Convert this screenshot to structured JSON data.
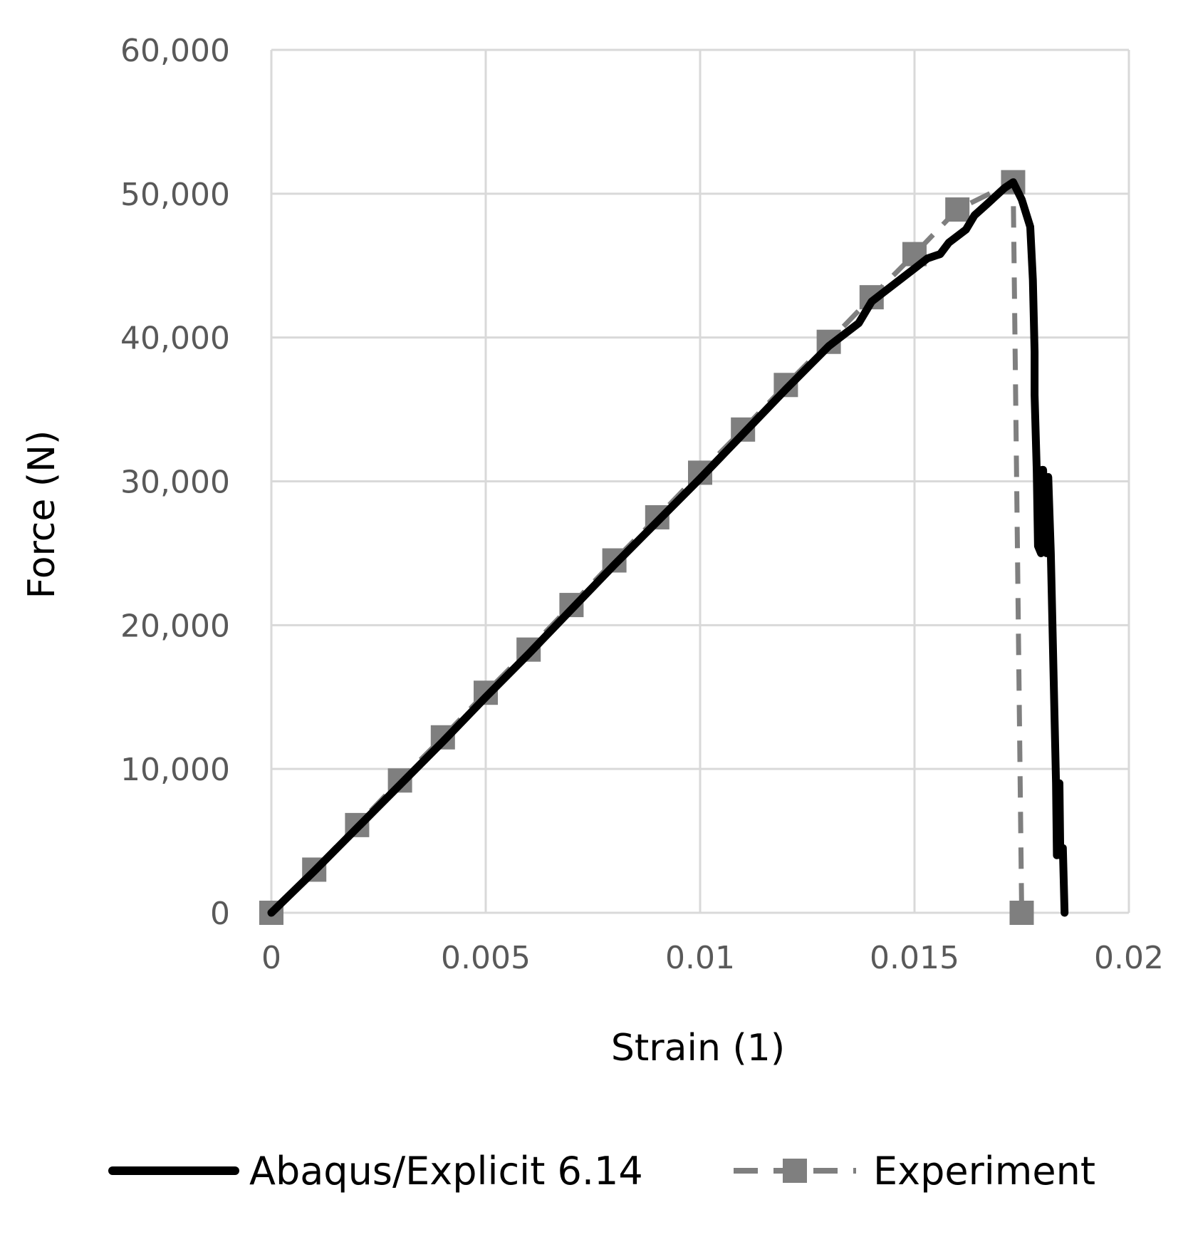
{
  "chart_data": {
    "type": "line",
    "title": "",
    "xlabel": "Strain (1)",
    "ylabel": "Force (N)",
    "xlim": [
      0,
      0.02
    ],
    "ylim": [
      0,
      60000
    ],
    "x_ticks": [
      0,
      0.005,
      0.01,
      0.015,
      0.02
    ],
    "x_tick_labels": [
      "0",
      "0.005",
      "0.01",
      "0.015",
      "0.02"
    ],
    "y_ticks": [
      0,
      10000,
      20000,
      30000,
      40000,
      50000,
      60000
    ],
    "y_tick_labels": [
      "0",
      "10,000",
      "20,000",
      "30,000",
      "40,000",
      "50,000",
      "60,000"
    ],
    "grid": true,
    "legend_position": "bottom",
    "series": [
      {
        "name": "Abaqus/Explicit 6.14",
        "color": "#000000",
        "style": "solid",
        "marker": "none",
        "points": [
          [
            0,
            0
          ],
          [
            0.001,
            2900
          ],
          [
            0.002,
            5900
          ],
          [
            0.003,
            8900
          ],
          [
            0.004,
            11900
          ],
          [
            0.005,
            15000
          ],
          [
            0.006,
            18000
          ],
          [
            0.007,
            21100
          ],
          [
            0.008,
            24200
          ],
          [
            0.009,
            27200
          ],
          [
            0.01,
            30200
          ],
          [
            0.011,
            33300
          ],
          [
            0.012,
            36400
          ],
          [
            0.013,
            39400
          ],
          [
            0.0137,
            41000
          ],
          [
            0.014,
            42500
          ],
          [
            0.015,
            44800
          ],
          [
            0.0153,
            45500
          ],
          [
            0.0155,
            45700
          ],
          [
            0.0156,
            45800
          ],
          [
            0.0158,
            46600
          ],
          [
            0.0162,
            47500
          ],
          [
            0.0164,
            48500
          ],
          [
            0.0167,
            49300
          ],
          [
            0.0171,
            50400
          ],
          [
            0.0173,
            50800
          ],
          [
            0.0175,
            49600
          ],
          [
            0.0177,
            47700
          ],
          [
            0.01776,
            44000
          ],
          [
            0.0178,
            39000
          ],
          [
            0.0178,
            36000
          ],
          [
            0.01785,
            30800
          ],
          [
            0.01788,
            25500
          ],
          [
            0.01795,
            25000
          ],
          [
            0.01798,
            30800
          ],
          [
            0.018,
            30800
          ],
          [
            0.01805,
            26000
          ],
          [
            0.01808,
            25000
          ],
          [
            0.01812,
            30300
          ],
          [
            0.01818,
            25000
          ],
          [
            0.0183,
            9000
          ],
          [
            0.01832,
            4000
          ],
          [
            0.01836,
            9000
          ],
          [
            0.01838,
            9000
          ],
          [
            0.0184,
            4000
          ],
          [
            0.01846,
            4500
          ],
          [
            0.0185,
            0
          ]
        ]
      },
      {
        "name": "Experiment",
        "color": "#7f7f7f",
        "style": "dashed",
        "marker": "square",
        "points": [
          [
            0,
            0
          ],
          [
            0.001,
            3000
          ],
          [
            0.002,
            6100
          ],
          [
            0.003,
            9200
          ],
          [
            0.004,
            12200
          ],
          [
            0.005,
            15300
          ],
          [
            0.006,
            18300
          ],
          [
            0.007,
            21400
          ],
          [
            0.008,
            24500
          ],
          [
            0.009,
            27500
          ],
          [
            0.01,
            30600
          ],
          [
            0.011,
            33600
          ],
          [
            0.012,
            36700
          ],
          [
            0.013,
            39700
          ],
          [
            0.014,
            42800
          ],
          [
            0.015,
            45800
          ],
          [
            0.016,
            48900
          ],
          [
            0.0173,
            50800
          ],
          [
            0.0175,
            0
          ]
        ]
      }
    ]
  }
}
